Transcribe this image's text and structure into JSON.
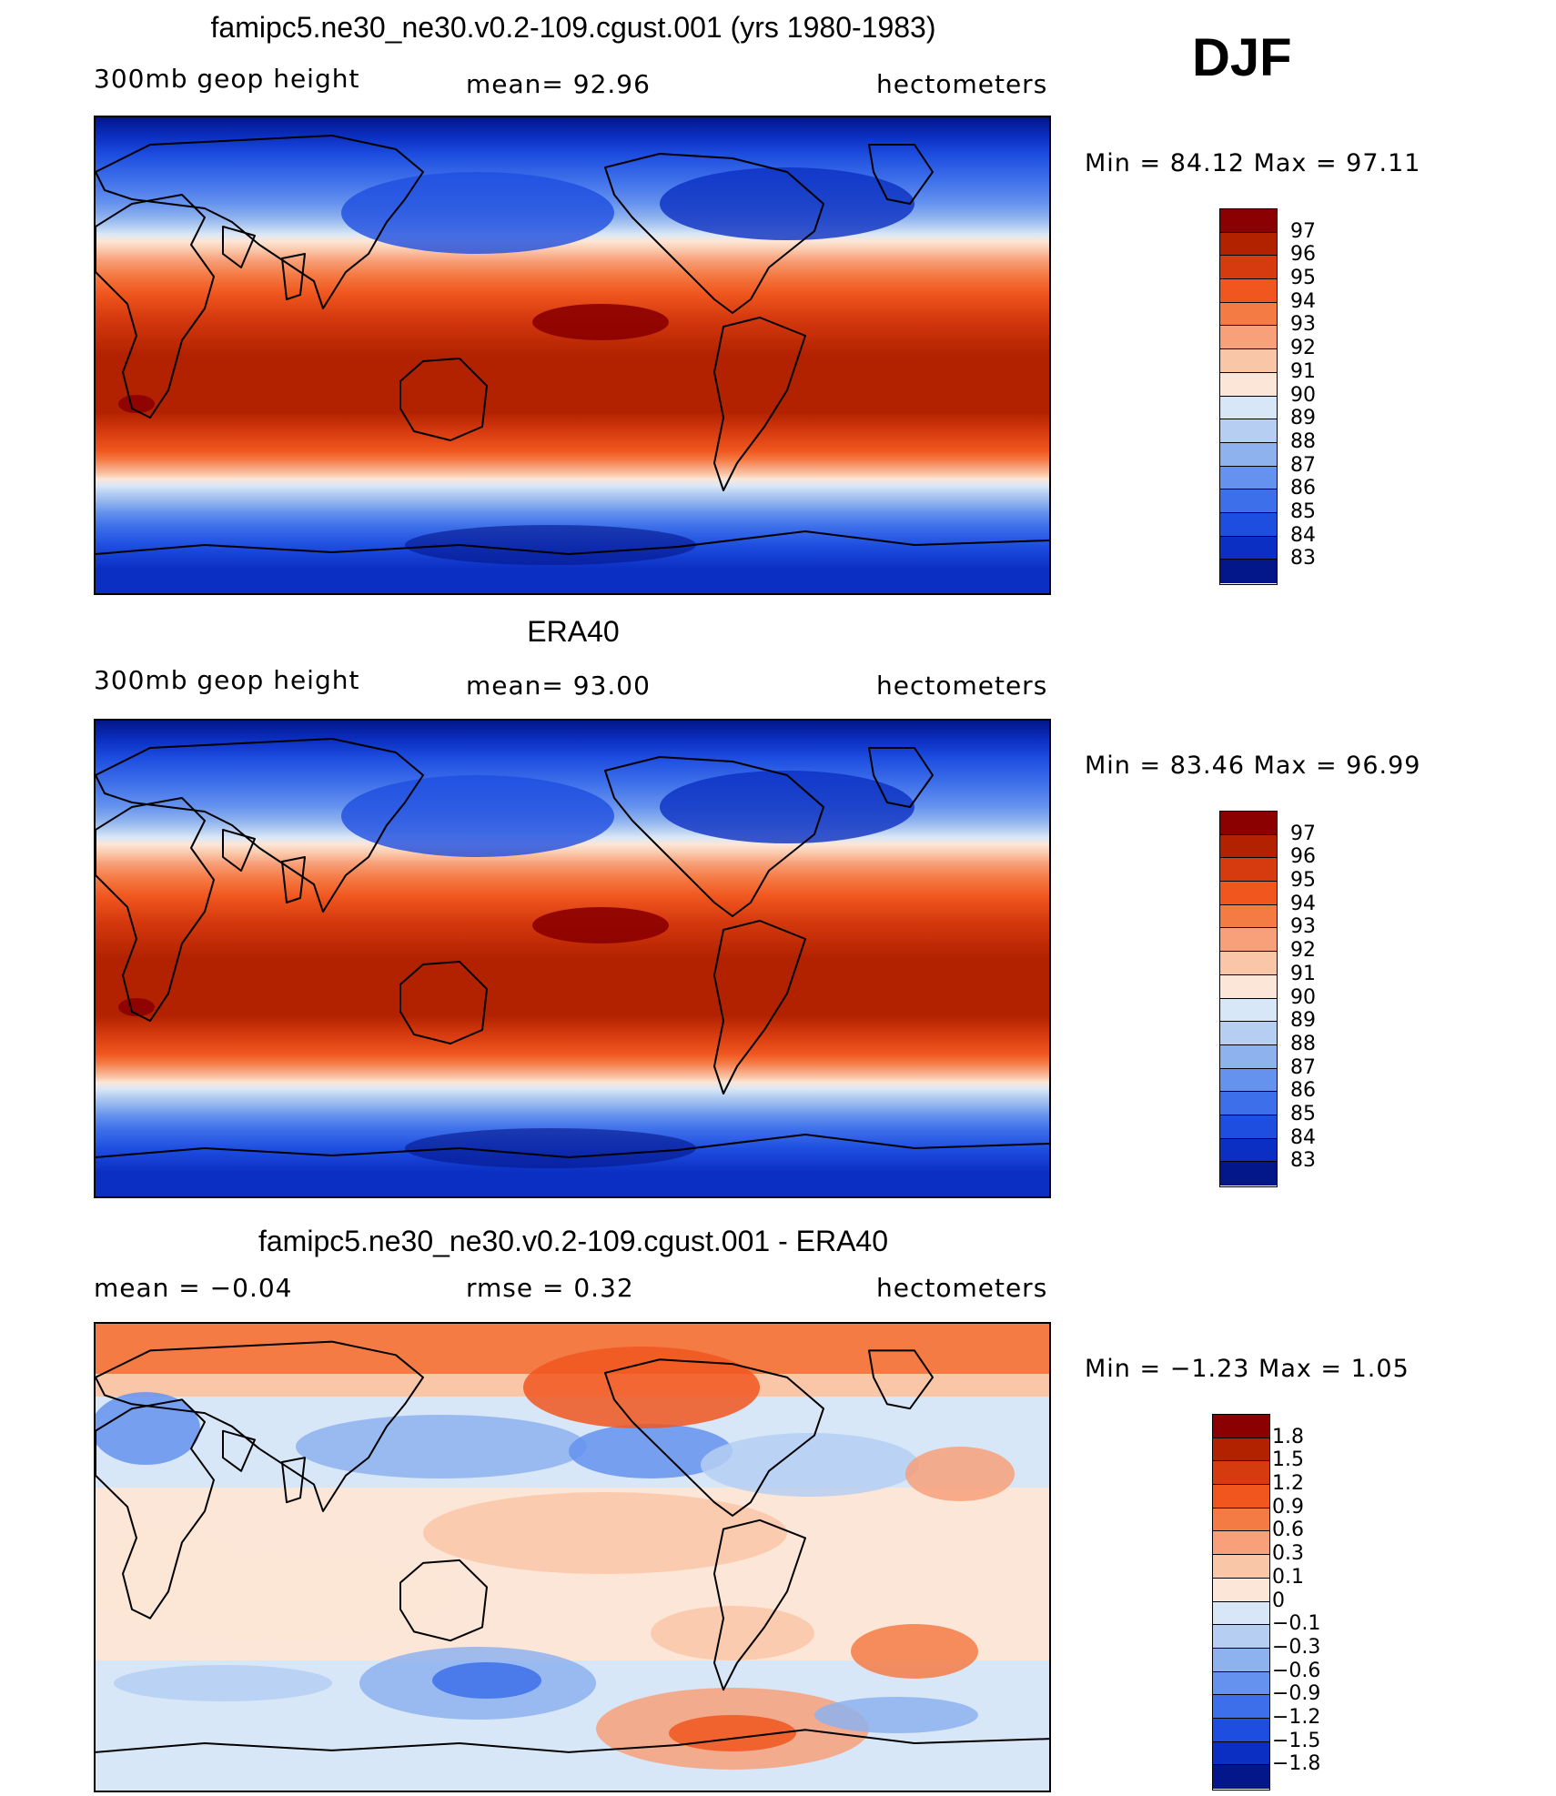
{
  "header": {
    "season": "DJF"
  },
  "panels": [
    {
      "id": "model",
      "title": "famipc5.ne30_ne30.v0.2-109.cgust.001 (yrs 1980-1983)",
      "left_label": "300mb  geop  height",
      "center_label": "mean=   92.96",
      "right_label": "hectometers",
      "minmax": "Min  =   84.12  Max  =   97.11",
      "colorbar": {
        "labels": [
          "97",
          "96",
          "95",
          "94",
          "93",
          "92",
          "91",
          "90",
          "89",
          "88",
          "87",
          "86",
          "85",
          "84",
          "83"
        ],
        "colors": [
          "#8B0000",
          "#B22200",
          "#D63A0F",
          "#F0561E",
          "#F57B45",
          "#F7A07A",
          "#FAC6A8",
          "#FCE6D7",
          "#D8E7F7",
          "#B5CEF2",
          "#8EB2EE",
          "#6592EE",
          "#3D6FEA",
          "#1E4EE0",
          "#0B2FC2",
          "#03168A"
        ]
      },
      "map_field": "climatology"
    },
    {
      "id": "obs",
      "title": "ERA40",
      "left_label": "300mb  geop  height",
      "center_label": "mean=   93.00",
      "right_label": "hectometers",
      "minmax": "Min  =   83.46  Max  =   96.99",
      "colorbar": {
        "labels": [
          "97",
          "96",
          "95",
          "94",
          "93",
          "92",
          "91",
          "90",
          "89",
          "88",
          "87",
          "86",
          "85",
          "84",
          "83"
        ],
        "colors": [
          "#8B0000",
          "#B22200",
          "#D63A0F",
          "#F0561E",
          "#F57B45",
          "#F7A07A",
          "#FAC6A8",
          "#FCE6D7",
          "#D8E7F7",
          "#B5CEF2",
          "#8EB2EE",
          "#6592EE",
          "#3D6FEA",
          "#1E4EE0",
          "#0B2FC2",
          "#03168A"
        ]
      },
      "map_field": "climatology"
    },
    {
      "id": "diff",
      "title": "famipc5.ne30_ne30.v0.2-109.cgust.001 - ERA40",
      "left_label": "mean  =    −0.04",
      "center_label": "rmse  =     0.32",
      "right_label": "hectometers",
      "minmax": "Min  =   −1.23  Max  =      1.05",
      "colorbar": {
        "labels": [
          "1.8",
          "1.5",
          "1.2",
          "0.9",
          "0.6",
          "0.3",
          "0.1",
          "0",
          "−0.1",
          "−0.3",
          "−0.6",
          "−0.9",
          "−1.2",
          "−1.5",
          "−1.8"
        ],
        "colors": [
          "#8B0000",
          "#B22200",
          "#D63A0F",
          "#F0561E",
          "#F57B45",
          "#F7A07A",
          "#FAC6A8",
          "#FCE6D7",
          "#D8E7F7",
          "#B5CEF2",
          "#8EB2EE",
          "#6592EE",
          "#3D6FEA",
          "#1E4EE0",
          "#0B2FC2",
          "#03168A"
        ]
      },
      "map_field": "difference"
    }
  ]
}
